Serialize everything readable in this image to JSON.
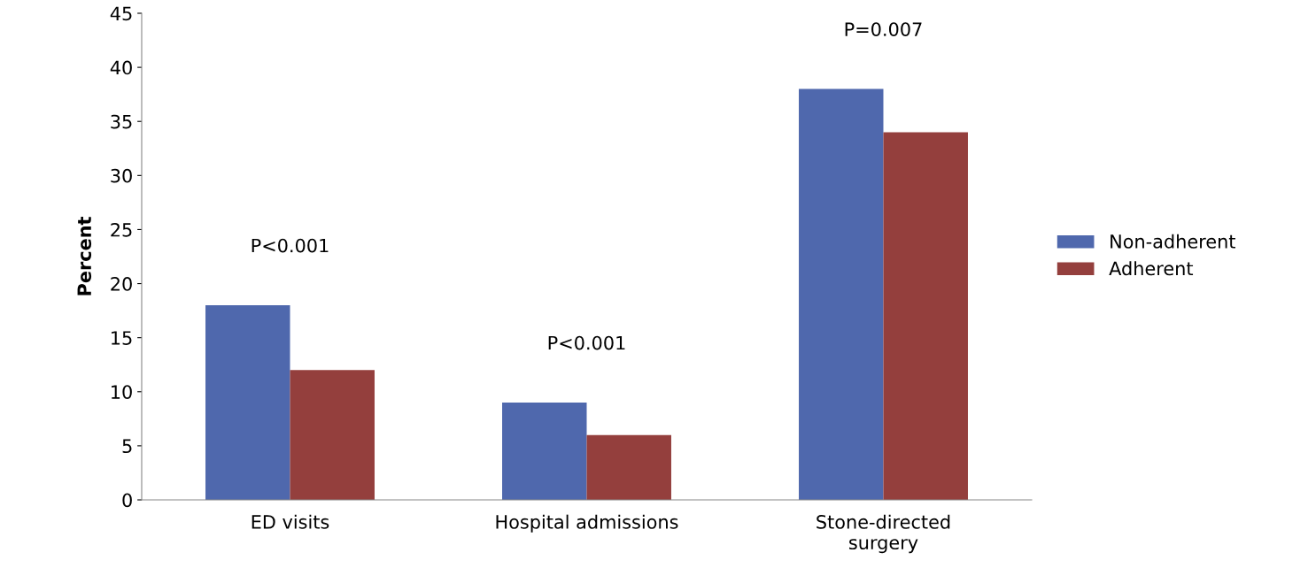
{
  "chart_data": {
    "type": "bar",
    "ylabel": "Percent",
    "categories": [
      "ED visits",
      "Hospital admissions",
      "Stone-directed\nsurgery"
    ],
    "series": [
      {
        "name": "Non-adherent",
        "color": "#4f68ad",
        "values": [
          18,
          9,
          38
        ]
      },
      {
        "name": "Adherent",
        "color": "#943f3d",
        "values": [
          12,
          6,
          34
        ]
      }
    ],
    "ylim": [
      0,
      45
    ],
    "yticks": [
      0,
      5,
      10,
      15,
      20,
      25,
      30,
      35,
      40,
      45
    ],
    "annotations": [
      "P<0.001",
      "P<0.001",
      "P=0.007"
    ],
    "grid": false,
    "legend": "right"
  }
}
